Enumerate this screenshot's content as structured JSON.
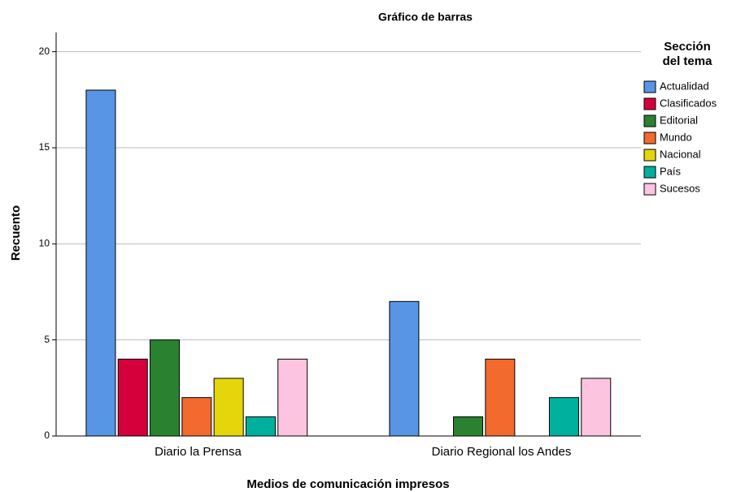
{
  "chart_data": {
    "type": "bar",
    "title": "Gráfico de barras",
    "x_label": "Medios de comunicación impresos",
    "y_label": "Recuento",
    "legend_title": [
      "Sección",
      "del tema"
    ],
    "categories": [
      "Diario la Prensa",
      "Diario Regional los Andes"
    ],
    "series": [
      {
        "name": "Actualidad",
        "color": "#5895e5",
        "values": [
          18,
          7
        ]
      },
      {
        "name": "Clasificados",
        "color": "#d5003b",
        "values": [
          4,
          0
        ]
      },
      {
        "name": "Editorial",
        "color": "#2a8230",
        "values": [
          5,
          1
        ]
      },
      {
        "name": "Mundo",
        "color": "#f26a2e",
        "values": [
          2,
          4
        ]
      },
      {
        "name": "Nacional",
        "color": "#e5d60b",
        "values": [
          3,
          0
        ]
      },
      {
        "name": "País",
        "color": "#00b09e",
        "values": [
          1,
          2
        ]
      },
      {
        "name": "Sucesos",
        "color": "#fdc4e0",
        "values": [
          4,
          3
        ]
      }
    ],
    "ylim": [
      0,
      21
    ],
    "yticks": [
      0,
      5,
      10,
      15,
      20
    ],
    "grid": true,
    "legend": "right"
  }
}
